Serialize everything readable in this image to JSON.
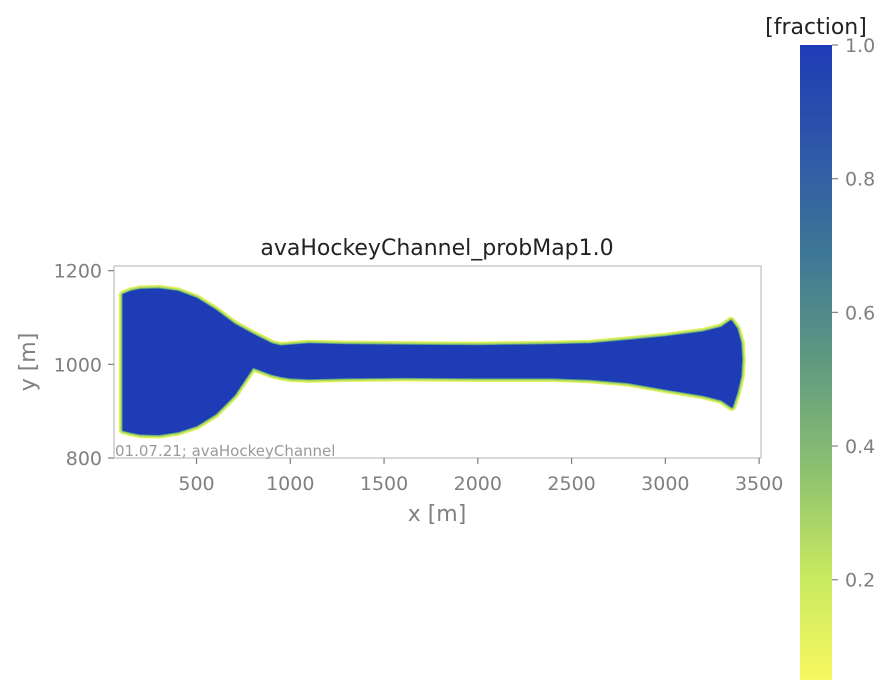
{
  "chart_data": {
    "type": "heatmap",
    "title": "avaHockeyChannel_probMap1.0",
    "xlabel": "x [m]",
    "ylabel": "y [m]",
    "xlim": [
      60,
      3510
    ],
    "ylim": [
      800,
      1210
    ],
    "x_ticks": [
      500,
      1000,
      1500,
      2000,
      2500,
      3000,
      3500
    ],
    "y_ticks": [
      800,
      1000,
      1200
    ],
    "annotation": "01.07.21; avaHockeyChannel",
    "grid": false,
    "colorbar": {
      "label": "[fraction]",
      "range": [
        0.05,
        1.0
      ],
      "ticks": [
        0.2,
        0.4,
        0.6,
        0.8,
        1.0
      ],
      "colormap": [
        "#f8f860",
        "#c6e860",
        "#8cc070",
        "#5f9a80",
        "#3f7896",
        "#2e58a8",
        "#1e3cb6"
      ]
    },
    "field": {
      "value_inside": 1.0,
      "edge_colors": [
        "#2a4fb0",
        "#5aa088",
        "#a8d860",
        "#e0f060"
      ],
      "upper_boundary": [
        [
          110,
          1148
        ],
        [
          150,
          1155
        ],
        [
          200,
          1159
        ],
        [
          300,
          1160
        ],
        [
          400,
          1155
        ],
        [
          500,
          1140
        ],
        [
          600,
          1115
        ],
        [
          700,
          1085
        ],
        [
          800,
          1063
        ],
        [
          900,
          1043
        ],
        [
          950,
          1038
        ],
        [
          1000,
          1040
        ],
        [
          1100,
          1043
        ],
        [
          1300,
          1041
        ],
        [
          1600,
          1040
        ],
        [
          2000,
          1039
        ],
        [
          2400,
          1041
        ],
        [
          2600,
          1043
        ],
        [
          2800,
          1050
        ],
        [
          3000,
          1058
        ],
        [
          3200,
          1068
        ],
        [
          3300,
          1078
        ],
        [
          3350,
          1092
        ],
        [
          3380,
          1075
        ],
        [
          3400,
          1045
        ],
        [
          3405,
          1010
        ]
      ],
      "lower_boundary": [
        [
          3405,
          1010
        ],
        [
          3400,
          975
        ],
        [
          3380,
          940
        ],
        [
          3355,
          910
        ],
        [
          3300,
          925
        ],
        [
          3200,
          935
        ],
        [
          3000,
          948
        ],
        [
          2800,
          962
        ],
        [
          2600,
          969
        ],
        [
          2400,
          972
        ],
        [
          2000,
          972
        ],
        [
          1600,
          973
        ],
        [
          1300,
          972
        ],
        [
          1100,
          970
        ],
        [
          1000,
          972
        ],
        [
          950,
          975
        ],
        [
          900,
          980
        ],
        [
          800,
          995
        ],
        [
          700,
          935
        ],
        [
          600,
          895
        ],
        [
          500,
          870
        ],
        [
          400,
          857
        ],
        [
          300,
          851
        ],
        [
          200,
          852
        ],
        [
          150,
          856
        ],
        [
          110,
          860
        ]
      ]
    }
  }
}
